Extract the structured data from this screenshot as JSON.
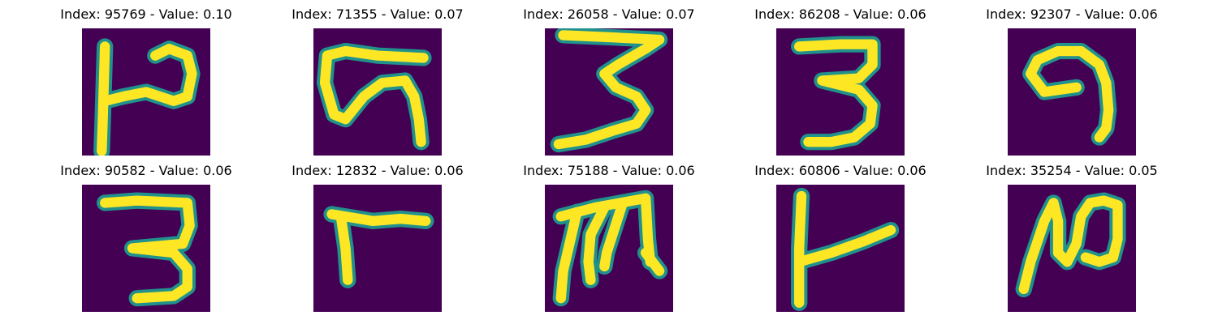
{
  "colors": {
    "background": "#440154",
    "stroke_core": "#fde725",
    "stroke_edge": "#21918c"
  },
  "panels": [
    {
      "title": "Index: 95769 - Value: 0.10"
    },
    {
      "title": "Index: 71355 - Value: 0.07"
    },
    {
      "title": "Index: 26058 - Value: 0.07"
    },
    {
      "title": "Index: 86208 - Value: 0.06"
    },
    {
      "title": "Index: 92307 - Value: 0.06"
    },
    {
      "title": "Index: 90582 - Value: 0.06"
    },
    {
      "title": "Index: 12832 - Value: 0.06"
    },
    {
      "title": "Index: 75188 - Value: 0.06"
    },
    {
      "title": "Index: 60806 - Value: 0.06"
    },
    {
      "title": "Index: 35254 - Value: 0.05"
    }
  ]
}
